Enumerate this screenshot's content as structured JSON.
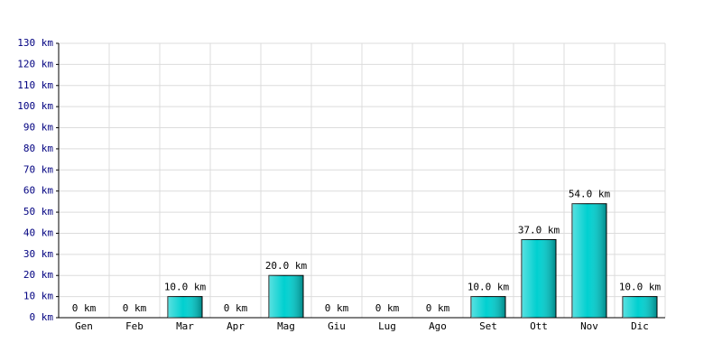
{
  "chart_data": {
    "type": "bar",
    "categories": [
      "Gen",
      "Feb",
      "Mar",
      "Apr",
      "Mag",
      "Giu",
      "Lug",
      "Ago",
      "Set",
      "Ott",
      "Nov",
      "Dic"
    ],
    "values": [
      0,
      0,
      10,
      0,
      20,
      0,
      0,
      0,
      10,
      37,
      54,
      10
    ],
    "value_labels": [
      "0 km",
      "0 km",
      "10.0 km",
      "0 km",
      "20.0 km",
      "0 km",
      "0 km",
      "0 km",
      "10.0 km",
      "37.0 km",
      "54.0 km",
      "10.0 km"
    ],
    "color": "#00d0d0",
    "ylim": [
      0,
      130
    ],
    "yticks": [
      {
        "value": 0,
        "label": "0 km"
      },
      {
        "value": 10,
        "label": "10 km"
      },
      {
        "value": 20,
        "label": "20 km"
      },
      {
        "value": 30,
        "label": "30 km"
      },
      {
        "value": 40,
        "label": "40 km"
      },
      {
        "value": 50,
        "label": "50 km"
      },
      {
        "value": 60,
        "label": "60 km"
      },
      {
        "value": 70,
        "label": "70 km"
      },
      {
        "value": 80,
        "label": "80 km"
      },
      {
        "value": 90,
        "label": "90 km"
      },
      {
        "value": 100,
        "label": "100 km"
      },
      {
        "value": 110,
        "label": "110 km"
      },
      {
        "value": 120,
        "label": "120 km"
      },
      {
        "value": 130,
        "label": "130 km"
      }
    ],
    "grid": true
  }
}
